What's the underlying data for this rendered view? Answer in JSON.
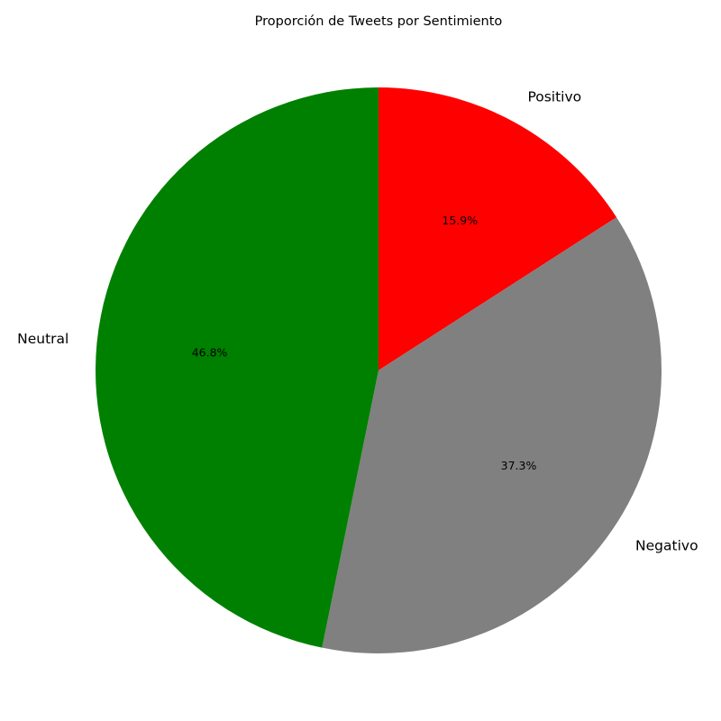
{
  "chart_data": {
    "type": "pie",
    "title": "Proporción de Tweets por Sentimiento",
    "start_angle_deg": 90,
    "direction": "clockwise",
    "slices": [
      {
        "label": "Positivo",
        "value": 15.9,
        "pct_label": "15.9%",
        "color": "#ff0000"
      },
      {
        "label": "Negativo",
        "value": 37.3,
        "pct_label": "37.3%",
        "color": "#808080"
      },
      {
        "label": "Neutral",
        "value": 46.8,
        "pct_label": "46.8%",
        "color": "#008000"
      }
    ]
  }
}
